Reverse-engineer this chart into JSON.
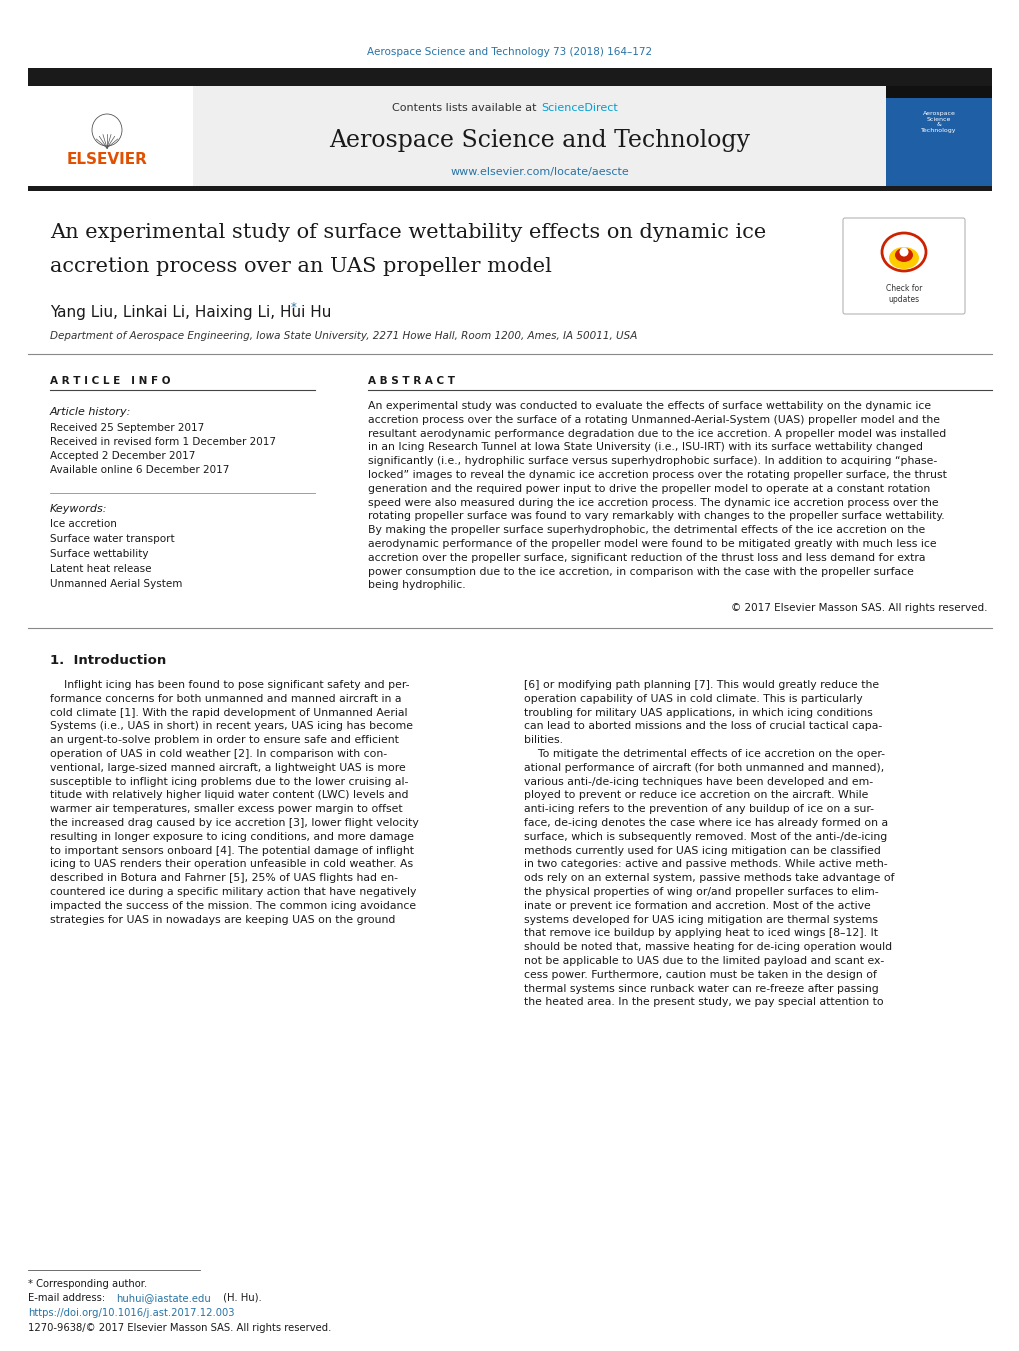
{
  "page_width": 10.2,
  "page_height": 13.51,
  "bg_color": "#ffffff",
  "journal_ref_color": "#2874a6",
  "journal_ref": "Aerospace Science and Technology 73 (2018) 164–172",
  "sciencedirect_color": "#00a0d2",
  "contents_text": "Contents lists available at ",
  "sciencedirect_text": "ScienceDirect",
  "journal_title": "Aerospace Science and Technology",
  "journal_url": "www.elsevier.com/locate/aescte",
  "journal_url_color": "#2874a6",
  "header_bg": "#efefef",
  "top_bar_color": "#1a1a1a",
  "sidebar_blue": "#1f5fa6",
  "paper_title_line1": "An experimental study of surface wettability effects on dynamic ice",
  "paper_title_line2": "accretion process over an UAS propeller model",
  "authors": "Yang Liu, Linkai Li, Haixing Li, Hui Hu",
  "corresponding_marker": "*",
  "affiliation": "Department of Aerospace Engineering, Iowa State University, 2271 Howe Hall, Room 1200, Ames, IA 50011, USA",
  "article_info_label": "A R T I C L E   I N F O",
  "abstract_label": "A B S T R A C T",
  "article_history_label": "Article history:",
  "received_1": "Received 25 September 2017",
  "received_revised": "Received in revised form 1 December 2017",
  "accepted": "Accepted 2 December 2017",
  "available_online": "Available online 6 December 2017",
  "keywords_label": "Keywords:",
  "keywords": [
    "Ice accretion",
    "Surface water transport",
    "Surface wettability",
    "Latent heat release",
    "Unmanned Aerial System"
  ],
  "abstract_text_lines": [
    "An experimental study was conducted to evaluate the effects of surface wettability on the dynamic ice",
    "accretion process over the surface of a rotating Unmanned-Aerial-System (UAS) propeller model and the",
    "resultant aerodynamic performance degradation due to the ice accretion. A propeller model was installed",
    "in an Icing Research Tunnel at Iowa State University (i.e., ISU-IRT) with its surface wettability changed",
    "significantly (i.e., hydrophilic surface versus superhydrophobic surface). In addition to acquiring “phase-",
    "locked” images to reveal the dynamic ice accretion process over the rotating propeller surface, the thrust",
    "generation and the required power input to drive the propeller model to operate at a constant rotation",
    "speed were also measured during the ice accretion process. The dynamic ice accretion process over the",
    "rotating propeller surface was found to vary remarkably with changes to the propeller surface wettability.",
    "By making the propeller surface superhydrophobic, the detrimental effects of the ice accretion on the",
    "aerodynamic performance of the propeller model were found to be mitigated greatly with much less ice",
    "accretion over the propeller surface, significant reduction of the thrust loss and less demand for extra",
    "power consumption due to the ice accretion, in comparison with the case with the propeller surface",
    "being hydrophilic."
  ],
  "copyright_text": "© 2017 Elsevier Masson SAS. All rights reserved.",
  "section1_title": "1.  Introduction",
  "intro_left_lines": [
    "    Inflight icing has been found to pose significant safety and per-",
    "formance concerns for both unmanned and manned aircraft in a",
    "cold climate [1]. With the rapid development of Unmanned Aerial",
    "Systems (i.e., UAS in short) in recent years, UAS icing has become",
    "an urgent-to-solve problem in order to ensure safe and efficient",
    "operation of UAS in cold weather [2]. In comparison with con-",
    "ventional, large-sized manned aircraft, a lightweight UAS is more",
    "susceptible to inflight icing problems due to the lower cruising al-",
    "titude with relatively higher liquid water content (LWC) levels and",
    "warmer air temperatures, smaller excess power margin to offset",
    "the increased drag caused by ice accretion [3], lower flight velocity",
    "resulting in longer exposure to icing conditions, and more damage",
    "to important sensors onboard [4]. The potential damage of inflight",
    "icing to UAS renders their operation unfeasible in cold weather. As",
    "described in Botura and Fahrner [5], 25% of UAS flights had en-",
    "countered ice during a specific military action that have negatively",
    "impacted the success of the mission. The common icing avoidance",
    "strategies for UAS in nowadays are keeping UAS on the ground"
  ],
  "intro_right_lines": [
    "[6] or modifying path planning [7]. This would greatly reduce the",
    "operation capability of UAS in cold climate. This is particularly",
    "troubling for military UAS applications, in which icing conditions",
    "can lead to aborted missions and the loss of crucial tactical capa-",
    "bilities.",
    "    To mitigate the detrimental effects of ice accretion on the oper-",
    "ational performance of aircraft (for both unmanned and manned),",
    "various anti-/de-icing techniques have been developed and em-",
    "ployed to prevent or reduce ice accretion on the aircraft. While",
    "anti-icing refers to the prevention of any buildup of ice on a sur-",
    "face, de-icing denotes the case where ice has already formed on a",
    "surface, which is subsequently removed. Most of the anti-/de-icing",
    "methods currently used for UAS icing mitigation can be classified",
    "in two categories: active and passive methods. While active meth-",
    "ods rely on an external system, passive methods take advantage of",
    "the physical properties of wing or/and propeller surfaces to elim-",
    "inate or prevent ice formation and accretion. Most of the active",
    "systems developed for UAS icing mitigation are thermal systems",
    "that remove ice buildup by applying heat to iced wings [8–12]. It",
    "should be noted that, massive heating for de-icing operation would",
    "not be applicable to UAS due to the limited payload and scant ex-",
    "cess power. Furthermore, caution must be taken in the design of",
    "thermal systems since runback water can re-freeze after passing",
    "the heated area. In the present study, we pay special attention to"
  ],
  "footnote_corresponding": "* Corresponding author.",
  "footnote_email_pre": "E-mail address: ",
  "footnote_email": "huhui@iastate.edu",
  "footnote_email_post": " (H. Hu).",
  "footnote_doi": "https://doi.org/10.1016/j.ast.2017.12.003",
  "footnote_issn": "1270-9638/© 2017 Elsevier Masson SAS. All rights reserved.",
  "link_color": "#2874a6",
  "text_color": "#111111"
}
